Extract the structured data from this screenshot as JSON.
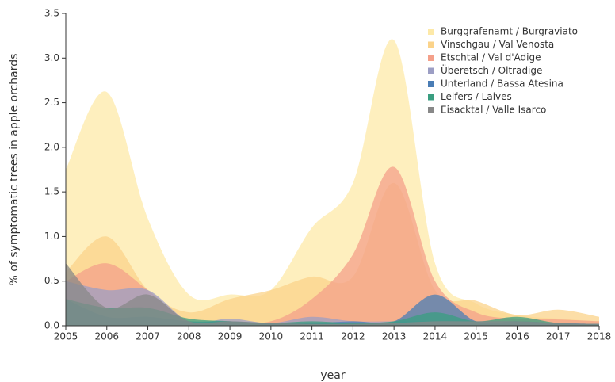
{
  "chart_data": {
    "type": "area",
    "x": [
      2005,
      2006,
      2007,
      2008,
      2009,
      2010,
      2011,
      2012,
      2013,
      2014,
      2015,
      2016,
      2017,
      2018
    ],
    "xlabel": "year",
    "ylabel": "% of symptomatic trees in apple orchards",
    "xlim": [
      2005,
      2018
    ],
    "xticks": [
      2005,
      2006,
      2007,
      2008,
      2009,
      2010,
      2011,
      2012,
      2013,
      2014,
      2015,
      2016,
      2017,
      2018
    ],
    "ylim": [
      0,
      3.5
    ],
    "yticks": [
      {
        "value": 0,
        "label": "0.0"
      },
      0.5,
      {
        "value": 1,
        "label": "1.0"
      },
      1.5,
      {
        "value": 2,
        "label": "2.0"
      },
      2.5,
      {
        "value": 3,
        "label": "3.0"
      },
      3.5
    ],
    "legend": "upper right",
    "series": [
      {
        "name": "Burggrafenamt / Burgraviato",
        "color": "#fde9a8",
        "values": [
          1.75,
          2.62,
          1.2,
          0.35,
          0.35,
          0.4,
          1.1,
          1.6,
          3.2,
          0.7,
          0.25,
          0.12,
          0.08,
          0.05
        ]
      },
      {
        "name": "Vinschgau / Val Venosta",
        "color": "#fbd38a",
        "values": [
          0.6,
          1.0,
          0.4,
          0.15,
          0.3,
          0.4,
          0.55,
          0.55,
          1.6,
          0.4,
          0.28,
          0.12,
          0.18,
          0.1
        ]
      },
      {
        "name": "Etschtal / Val d'Adige",
        "color": "#f4a08a",
        "values": [
          0.5,
          0.7,
          0.4,
          0.05,
          0.05,
          0.05,
          0.3,
          0.8,
          1.78,
          0.5,
          0.15,
          0.08,
          0.07,
          0.05
        ]
      },
      {
        "name": "Überetsch / Oltradige",
        "color": "#9c9ec4",
        "values": [
          0.5,
          0.4,
          0.4,
          0.05,
          0.08,
          0.03,
          0.1,
          0.05,
          0.05,
          0.05,
          0.05,
          0.05,
          0.03,
          0.02
        ]
      },
      {
        "name": "Unterland / Bassa Atesina",
        "color": "#4a7db5",
        "values": [
          0.3,
          0.1,
          0.1,
          0.05,
          0.05,
          0.03,
          0.03,
          0.05,
          0.05,
          0.35,
          0.05,
          0.05,
          0.03,
          0.02
        ]
      },
      {
        "name": "Leifers / Laives",
        "color": "#3a9e80",
        "values": [
          0.3,
          0.2,
          0.2,
          0.08,
          0.05,
          0.03,
          0.05,
          0.03,
          0.05,
          0.15,
          0.05,
          0.1,
          0.03,
          0.02
        ]
      },
      {
        "name": "Eisacktal / Valle Isarco",
        "color": "#888888",
        "values": [
          0.7,
          0.2,
          0.35,
          0.05,
          0.05,
          0.03,
          0.02,
          0.02,
          0.03,
          0.05,
          0.05,
          0.05,
          0.03,
          0.02
        ]
      }
    ]
  }
}
